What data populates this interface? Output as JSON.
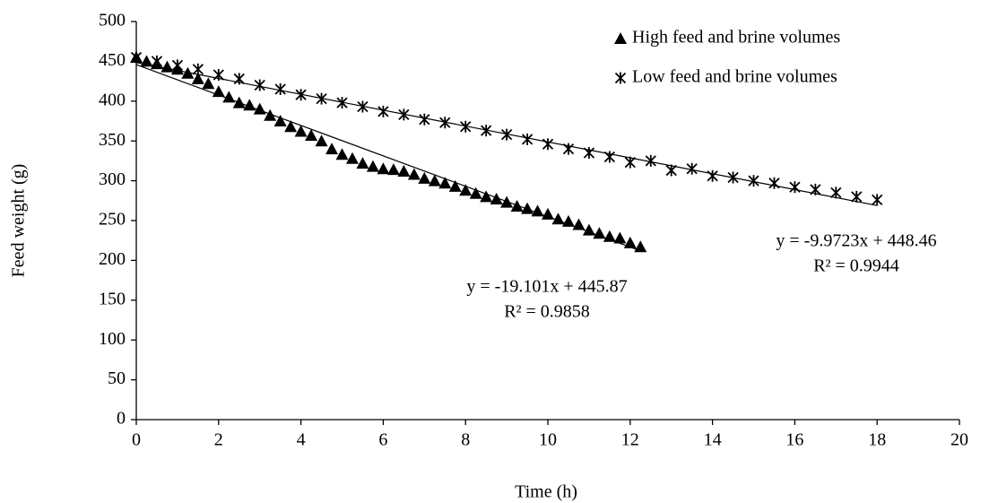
{
  "chart_data": {
    "type": "scatter",
    "x_label": "Time (h)",
    "y_label": "Feed weight (g)",
    "xlim": [
      0,
      20
    ],
    "ylim": [
      0,
      500
    ],
    "xticks": [
      0,
      2,
      4,
      6,
      8,
      10,
      12,
      14,
      16,
      18,
      20
    ],
    "yticks": [
      0,
      50,
      100,
      150,
      200,
      250,
      300,
      350,
      400,
      450,
      500
    ],
    "grid": false,
    "legend": "upper right",
    "series": [
      {
        "name": "High feed and brine volumes",
        "color": "#000000",
        "marker": "triangle",
        "x": [
          0,
          0.25,
          0.5,
          0.75,
          1,
          1.25,
          1.5,
          1.75,
          2,
          2.25,
          2.5,
          2.75,
          3,
          3.25,
          3.5,
          3.75,
          4,
          4.25,
          4.5,
          4.75,
          5,
          5.25,
          5.5,
          5.75,
          6,
          6.25,
          6.5,
          6.75,
          7,
          7.25,
          7.5,
          7.75,
          8,
          8.25,
          8.5,
          8.75,
          9,
          9.25,
          9.5,
          9.75,
          10,
          10.25,
          10.5,
          10.75,
          11,
          11.25,
          11.5,
          11.75,
          12,
          12.25
        ],
        "values": [
          455,
          450,
          447,
          443,
          440,
          435,
          428,
          422,
          412,
          405,
          398,
          395,
          390,
          382,
          375,
          368,
          362,
          357,
          350,
          340,
          333,
          328,
          322,
          318,
          315,
          314,
          312,
          308,
          303,
          300,
          297,
          293,
          288,
          284,
          280,
          277,
          273,
          268,
          265,
          262,
          258,
          252,
          249,
          245,
          238,
          234,
          230,
          228,
          222,
          217
        ],
        "trendline": {
          "slope": -19.101,
          "intercept": 445.87,
          "equation": "y = -19.101x + 445.87",
          "r2": "R² = 0.9858"
        }
      },
      {
        "name": "Low feed and brine volumes",
        "color": "#000000",
        "marker": "asterisk",
        "x": [
          0,
          0.5,
          1,
          1.5,
          2,
          2.5,
          3,
          3.5,
          4,
          4.5,
          5,
          5.5,
          6,
          6.5,
          7,
          7.5,
          8,
          8.5,
          9,
          9.5,
          10,
          10.5,
          11,
          11.5,
          12,
          12.5,
          13,
          13.5,
          14,
          14.5,
          15,
          15.5,
          16,
          16.5,
          17,
          17.5,
          18
        ],
        "values": [
          455,
          450,
          445,
          440,
          433,
          428,
          420,
          415,
          408,
          403,
          398,
          393,
          387,
          383,
          377,
          373,
          368,
          363,
          358,
          352,
          346,
          340,
          335,
          330,
          323,
          325,
          313,
          315,
          306,
          304,
          300,
          297,
          292,
          289,
          285,
          280,
          276
        ],
        "trendline": {
          "slope": -9.9723,
          "intercept": 448.46,
          "equation": "y = -9.9723x + 448.46",
          "r2": "R² = 0.9944"
        }
      }
    ]
  }
}
